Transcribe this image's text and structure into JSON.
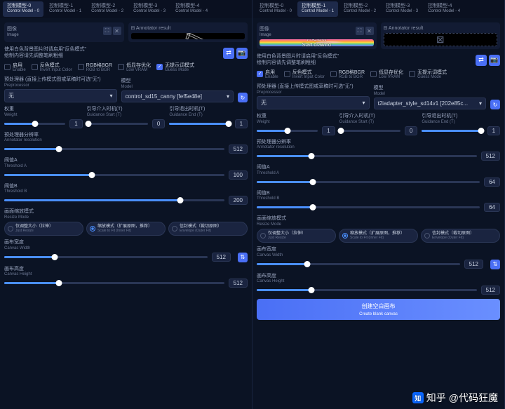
{
  "tabs": [
    {
      "cn": "控制模型-0",
      "en": "Control Model - 0"
    },
    {
      "cn": "控制模型-1",
      "en": "Control Model - 1"
    },
    {
      "cn": "控制模型-2",
      "en": "Control Model - 2"
    },
    {
      "cn": "控制模型-3",
      "en": "Control Model - 3"
    },
    {
      "cn": "控制模型-4",
      "en": "Control Model - 4"
    }
  ],
  "left": {
    "active_tab": 0,
    "image_label": "图像",
    "image_label_en": "Image",
    "annotator_label": "Annotator result",
    "draw_text": "开始绘制",
    "draw_text_en": "Start drawing",
    "note1": "使用白色背景图片时请启用\"反色模式\"",
    "note2": "绘制内容请先调整笔刷粗细",
    "checks": [
      {
        "cn": "启用",
        "en": "Enable",
        "on": false
      },
      {
        "cn": "反色模式",
        "en": "Invert Input Color",
        "on": false
      },
      {
        "cn": "RGB格BGR",
        "en": "RGB to BGR",
        "on": false
      },
      {
        "cn": "低显存优化",
        "en": "Low VRAM",
        "on": false
      },
      {
        "cn": "无提示词模式",
        "en": "Guess Mode",
        "on": true
      }
    ],
    "preproc_label": "预处理器 (直接上传模式图或草稿时可选\"无\")",
    "preproc_label_en": "Preprocessor",
    "preproc_value": "无",
    "model_label": "模型",
    "model_label_en": "Model",
    "model_value": "control_sd15_canny [fef5e48e]",
    "sliders3": [
      {
        "cn": "权重",
        "en": "Weight",
        "val": "1",
        "pct": 50
      },
      {
        "cn": "引导介入时机(T)",
        "en": "Guidance Start (T)",
        "val": "0",
        "pct": 3
      },
      {
        "cn": "引导退出时机(T)",
        "en": "Guidance End (T)",
        "val": "1",
        "pct": 97
      }
    ],
    "sliders": [
      {
        "cn": "预处理器分辨率",
        "en": "Annotator resolution",
        "val": "512",
        "pct": 25
      },
      {
        "cn": "阈值A",
        "en": "Threshold A",
        "val": "100",
        "pct": 40
      },
      {
        "cn": "阈值B",
        "en": "Threshold B",
        "val": "200",
        "pct": 80
      }
    ],
    "resize_label": "画面缩放模式",
    "resize_label_en": "Resize Mode",
    "resize_opts": [
      {
        "cn": "仅调整大小（拉伸）",
        "en": "Just Resize",
        "on": false
      },
      {
        "cn": "缩放模式（扩展原图，推荐）",
        "en": "Scale to Fit (Inner Fit)",
        "on": true
      },
      {
        "cn": "信封模式（裁切原图）",
        "en": "Envelope (Outer Fit)",
        "on": false
      }
    ],
    "canvas_sliders": [
      {
        "cn": "画布宽度",
        "en": "Canvas Width",
        "val": "512",
        "pct": 25
      },
      {
        "cn": "画布高度",
        "en": "Canvas Height",
        "val": "512",
        "pct": 25
      }
    ]
  },
  "right": {
    "active_tab": 1,
    "image_label": "图像",
    "image_label_en": "Image",
    "annotator_label": "Annotator result",
    "draw_text": "开始绘制",
    "draw_text_en": "Start drawing",
    "note1": "使用白色背景图片时请启用\"反色模式\"",
    "note2": "绘制内容请先调整笔刷粗细",
    "checks": [
      {
        "cn": "启用",
        "en": "Enable",
        "on": true
      },
      {
        "cn": "反色模式",
        "en": "Invert Input Color",
        "on": false
      },
      {
        "cn": "RGB格BGR",
        "en": "RGB to BGR",
        "on": false
      },
      {
        "cn": "低显存优化",
        "en": "Low VRAM",
        "on": false
      },
      {
        "cn": "无提示词模式",
        "en": "Guess Mode",
        "on": false
      }
    ],
    "preproc_label": "预处理器 (直接上传模式图或草稿时可选\"无\")",
    "preproc_label_en": "Preprocessor",
    "preproc_value": "无",
    "model_label": "模型",
    "model_label_en": "Model",
    "model_value": "t2iadapter_style_sd14v1 [202e85c...",
    "sliders3": [
      {
        "cn": "权重",
        "en": "Weight",
        "val": "1",
        "pct": 50
      },
      {
        "cn": "引导介入时机(T)",
        "en": "Guidance Start (T)",
        "val": "0",
        "pct": 3
      },
      {
        "cn": "引导退出时机(T)",
        "en": "Guidance End (T)",
        "val": "1",
        "pct": 97
      }
    ],
    "sliders": [
      {
        "cn": "预处理器分辨率",
        "en": "Annotator resolution",
        "val": "512",
        "pct": 25
      },
      {
        "cn": "阈值A",
        "en": "Threshold A",
        "val": "64",
        "pct": 25
      },
      {
        "cn": "阈值B",
        "en": "Threshold B",
        "val": "64",
        "pct": 25
      }
    ],
    "resize_label": "画面缩放模式",
    "resize_label_en": "Resize Mode",
    "resize_opts": [
      {
        "cn": "仅调整大小（拉伸）",
        "en": "Just Resize",
        "on": false
      },
      {
        "cn": "缩放模式（扩展原图，推荐）",
        "en": "Scale to Fit (Inner Fit)",
        "on": true
      },
      {
        "cn": "信封模式（裁切原图）",
        "en": "Envelope (Outer Fit)",
        "on": false
      }
    ],
    "canvas_sliders": [
      {
        "cn": "画布宽度",
        "en": "Canvas Width",
        "val": "512",
        "pct": 25
      },
      {
        "cn": "画布高度",
        "en": "Canvas Height",
        "val": "512",
        "pct": 25
      }
    ],
    "create_btn": "创建空白画布",
    "create_btn_en": "Create blank canvas"
  },
  "watermark": "@代码狂魔",
  "zh": "知乎"
}
